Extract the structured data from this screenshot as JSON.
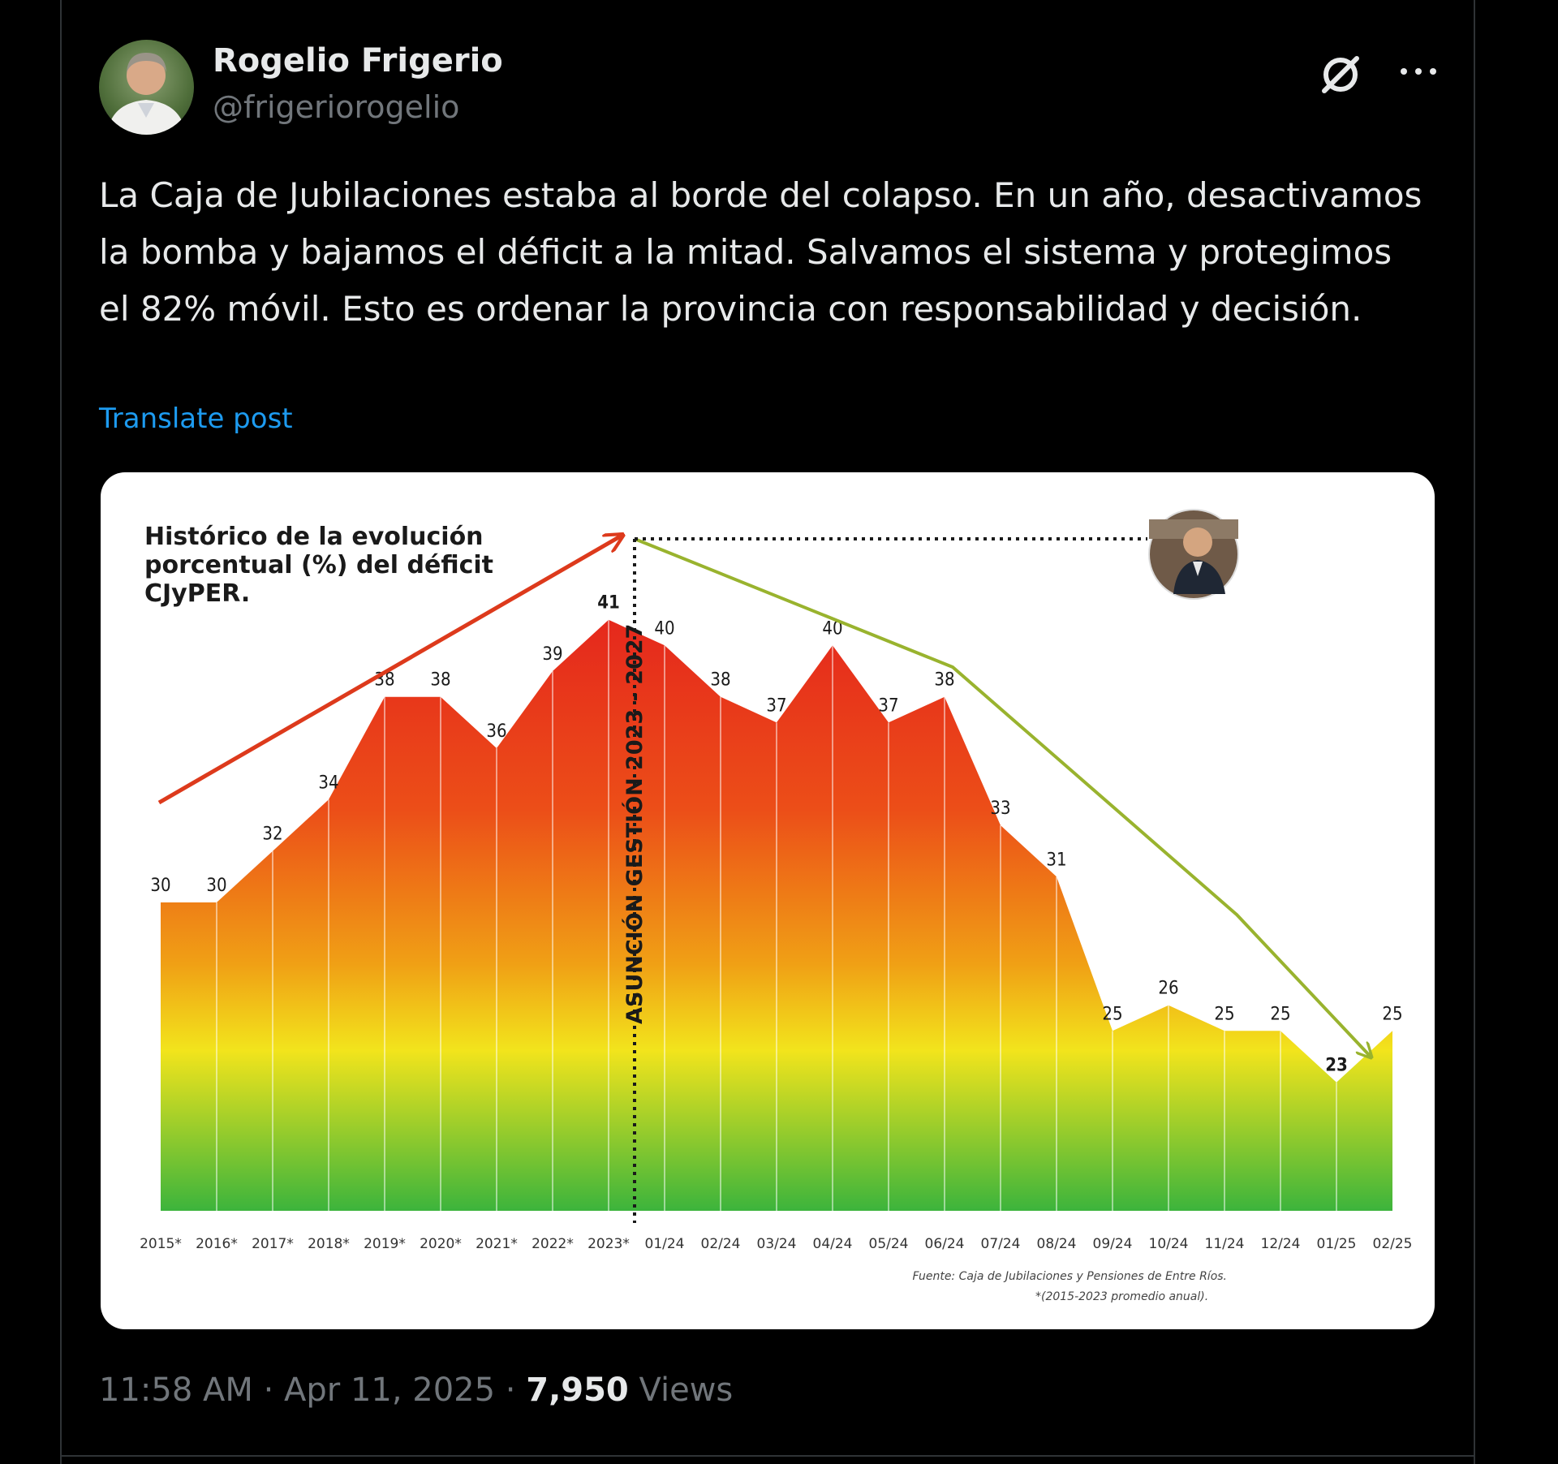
{
  "author": {
    "display_name": "Rogelio Frigerio",
    "handle": "@frigeriorogelio"
  },
  "icons": {
    "grok": "grok-icon",
    "more": "more-options-icon"
  },
  "post": {
    "text": "La Caja de Jubilaciones estaba al borde del colapso. En un año, desactivamos la bomba y bajamos el déficit a la mitad. Salvamos el sistema y protegimos el 82% móvil. Esto es ordenar la provincia con responsabilidad y decisión.",
    "translate_label": "Translate post"
  },
  "meta": {
    "time": "11:58 AM",
    "separator": "·",
    "date": "Apr 11, 2025",
    "views_count": "7,950",
    "views_label": "Views"
  },
  "chart_data": {
    "type": "area",
    "title_lines": [
      "Histórico de la evolución",
      "porcentual (%) del déficit",
      "CJyPER."
    ],
    "categories": [
      "2015*",
      "2016*",
      "2017*",
      "2018*",
      "2019*",
      "2020*",
      "2021*",
      "2022*",
      "2023*",
      "01/24",
      "02/24",
      "03/24",
      "04/24",
      "05/24",
      "06/24",
      "07/24",
      "08/24",
      "09/24",
      "10/24",
      "11/24",
      "12/24",
      "01/25",
      "02/25"
    ],
    "values": [
      30,
      30,
      32,
      34,
      38,
      38,
      36,
      39,
      41,
      40,
      38,
      37,
      40,
      37,
      38,
      33,
      31,
      25,
      26,
      25,
      25,
      23,
      25
    ],
    "ylim": [
      18,
      42
    ],
    "vertical_marker": {
      "after_category": "2023*",
      "label": "ASUNCIÓN GESTIÓN 2023 - 2027"
    },
    "source_lines": [
      "Fuente: Caja de Jubilaciones y Pensiones de Entre Ríos.",
      "*(2015-2023 promedio anual)."
    ],
    "colors": {
      "fill_top": "#e4231d",
      "fill_mid": "#f0a015",
      "fill_yellow": "#f2e41c",
      "fill_bottom": "#3cb43c",
      "up_arrow": "#dd3a1c",
      "down_arrow": "#99b32e"
    }
  }
}
